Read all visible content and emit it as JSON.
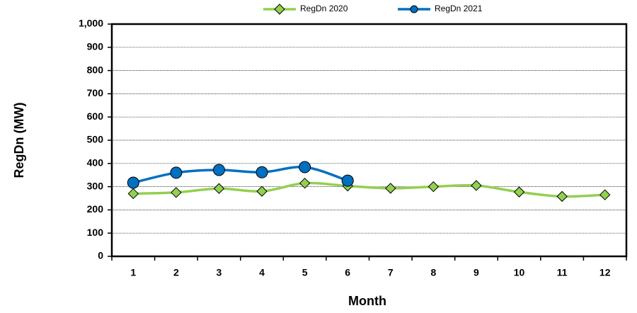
{
  "chart_data": {
    "type": "line",
    "x_label": "Month",
    "y_label": "RegDn (MW)",
    "categories": [
      "1",
      "2",
      "3",
      "4",
      "5",
      "6",
      "7",
      "8",
      "9",
      "10",
      "11",
      "12"
    ],
    "series": [
      {
        "name": "RegDn 2020",
        "color": "#92d050",
        "marker": "diamond",
        "values": [
          270,
          275,
          292,
          280,
          315,
          303,
          293,
          300,
          305,
          277,
          258,
          265
        ]
      },
      {
        "name": "RegDn 2021",
        "color": "#0070c0",
        "marker": "circle",
        "values": [
          317,
          360,
          372,
          362,
          384,
          326,
          null,
          null,
          null,
          null,
          null,
          null
        ]
      }
    ],
    "ylim": [
      0,
      1000
    ],
    "yticks": [
      0,
      100,
      200,
      300,
      400,
      500,
      600,
      700,
      800,
      900,
      {
        "value": 1000,
        "label": "1,000"
      }
    ],
    "grid": true,
    "legend": "top"
  }
}
